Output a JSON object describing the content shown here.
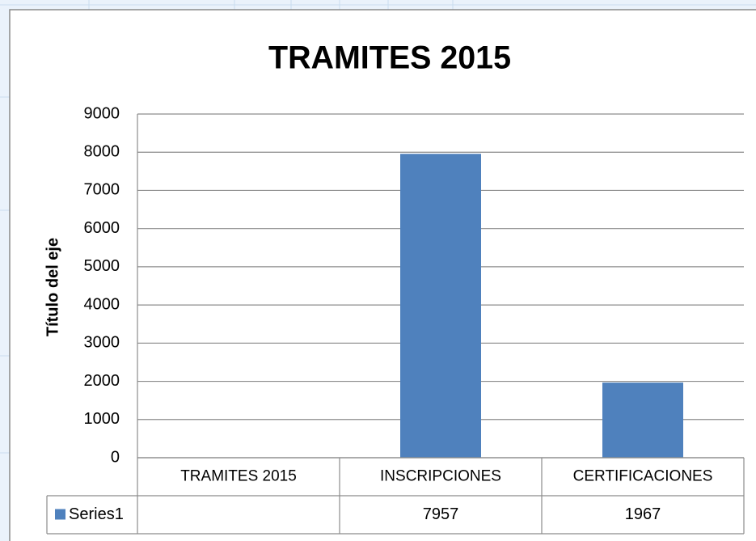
{
  "chart_data": {
    "type": "bar",
    "title": "TRAMITES 2015",
    "y_axis_label": "Título del eje",
    "categories": [
      "TRAMITES 2015",
      "INSCRIPCIONES",
      "CERTIFICACIONES"
    ],
    "series": [
      {
        "name": "Series1",
        "color": "#4f81bd",
        "values": [
          null,
          7957,
          1967
        ]
      }
    ],
    "ylim": [
      0,
      9000
    ],
    "yticks": [
      0,
      1000,
      2000,
      3000,
      4000,
      5000,
      6000,
      7000,
      8000,
      9000
    ],
    "grid": true,
    "data_table": true
  }
}
